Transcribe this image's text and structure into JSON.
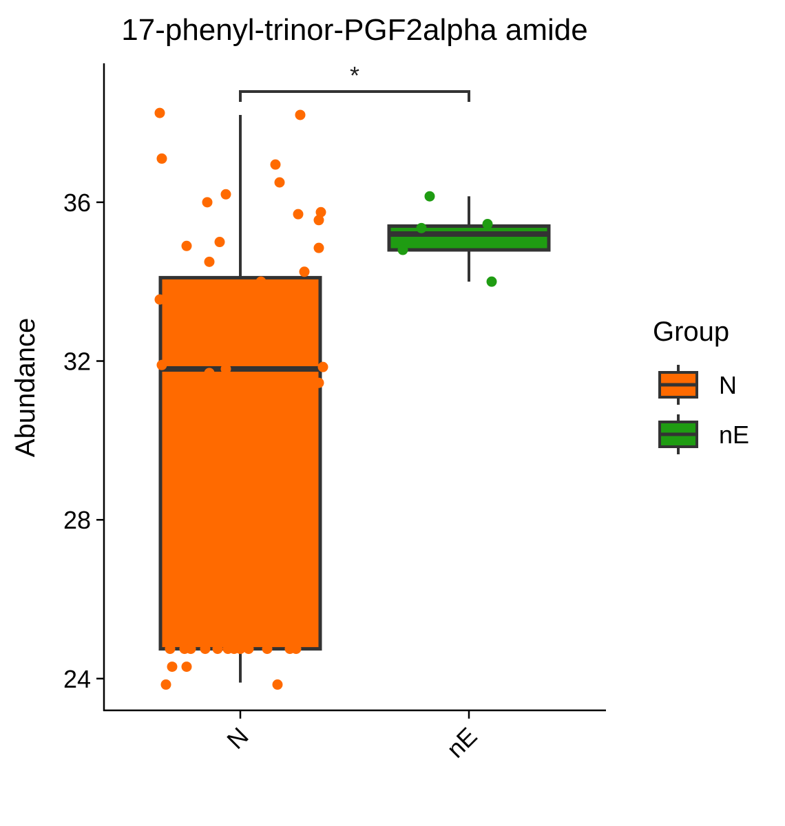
{
  "chart_data": {
    "type": "box",
    "title": "17-phenyl-trinor-PGF2alpha amide",
    "xlabel": "",
    "ylabel": "Abundance",
    "ylim": [
      23.2,
      39.5
    ],
    "yticks": [
      24,
      28,
      32,
      36
    ],
    "categories": [
      "N",
      "nE"
    ],
    "legend": {
      "title": "Group",
      "position": "right"
    },
    "series": [
      {
        "name": "N",
        "color": "#ff6a00",
        "box": {
          "min": 23.9,
          "q1": 24.75,
          "median": 31.8,
          "q3": 34.1,
          "max": 38.2
        },
        "points": [
          {
            "x": -0.39,
            "y": 38.25
          },
          {
            "x": -0.38,
            "y": 37.1
          },
          {
            "x": 0.29,
            "y": 38.2
          },
          {
            "x": 0.17,
            "y": 36.95
          },
          {
            "x": 0.19,
            "y": 36.5
          },
          {
            "x": -0.16,
            "y": 36.0
          },
          {
            "x": -0.07,
            "y": 36.2
          },
          {
            "x": 0.28,
            "y": 35.7
          },
          {
            "x": 0.39,
            "y": 35.75
          },
          {
            "x": 0.38,
            "y": 35.55
          },
          {
            "x": -0.26,
            "y": 34.9
          },
          {
            "x": -0.1,
            "y": 35.0
          },
          {
            "x": 0.38,
            "y": 34.85
          },
          {
            "x": -0.15,
            "y": 34.5
          },
          {
            "x": 0.31,
            "y": 34.25
          },
          {
            "x": 0.1,
            "y": 34.0
          },
          {
            "x": -0.39,
            "y": 33.55
          },
          {
            "x": -0.38,
            "y": 31.9
          },
          {
            "x": 0.4,
            "y": 31.85
          },
          {
            "x": -0.15,
            "y": 31.7
          },
          {
            "x": -0.07,
            "y": 31.8
          },
          {
            "x": 0.38,
            "y": 31.45
          },
          {
            "x": -0.34,
            "y": 24.75
          },
          {
            "x": -0.27,
            "y": 24.75
          },
          {
            "x": -0.24,
            "y": 24.75
          },
          {
            "x": -0.17,
            "y": 24.75
          },
          {
            "x": -0.11,
            "y": 24.75
          },
          {
            "x": -0.06,
            "y": 24.75
          },
          {
            "x": -0.03,
            "y": 24.75
          },
          {
            "x": 0.0,
            "y": 24.75
          },
          {
            "x": 0.04,
            "y": 24.75
          },
          {
            "x": 0.13,
            "y": 24.75
          },
          {
            "x": 0.24,
            "y": 24.75
          },
          {
            "x": 0.27,
            "y": 24.75
          },
          {
            "x": -0.33,
            "y": 24.3
          },
          {
            "x": -0.26,
            "y": 24.3
          },
          {
            "x": -0.36,
            "y": 23.85
          },
          {
            "x": 0.18,
            "y": 23.85
          }
        ]
      },
      {
        "name": "nE",
        "color": "#1f9c12",
        "box": {
          "min": 34.0,
          "q1": 34.8,
          "median": 35.2,
          "q3": 35.4,
          "max": 36.15
        },
        "points": [
          {
            "x": -0.32,
            "y": 34.8
          },
          {
            "x": -0.23,
            "y": 35.35
          },
          {
            "x": -0.19,
            "y": 36.15
          },
          {
            "x": 0.09,
            "y": 35.45
          },
          {
            "x": 0.11,
            "y": 34.0
          }
        ]
      }
    ],
    "annotations": [
      {
        "type": "significance",
        "from": "N",
        "to": "nE",
        "label": "*"
      }
    ]
  }
}
